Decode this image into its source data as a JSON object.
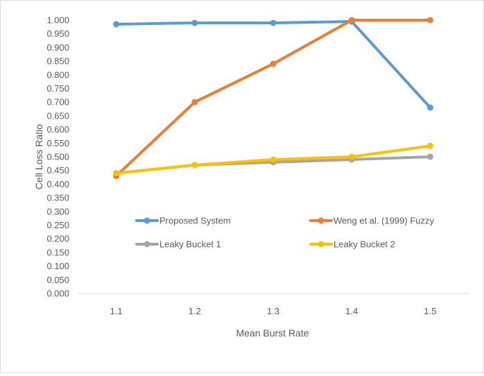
{
  "chart_data": {
    "type": "line",
    "title": "",
    "xlabel": "Mean Burst Rate",
    "ylabel": "Cell Loss Ratio",
    "categories": [
      "1.1",
      "1.2",
      "1.3",
      "1.4",
      "1.5"
    ],
    "ylim": [
      0,
      1.0
    ],
    "yticks": [
      "0.000",
      "0.050",
      "0.100",
      "0.150",
      "0.200",
      "0.250",
      "0.300",
      "0.350",
      "0.400",
      "0.450",
      "0.500",
      "0.550",
      "0.600",
      "0.650",
      "0.700",
      "0.750",
      "0.800",
      "0.850",
      "0.900",
      "0.950",
      "1.000"
    ],
    "grid": false,
    "legend_position": "inside-lower",
    "series": [
      {
        "name": "Proposed System",
        "color": "#5b9bd5",
        "values": [
          0.985,
          0.99,
          0.99,
          0.995,
          0.68
        ]
      },
      {
        "name": "Weng et al. (1999) Fuzzy",
        "color": "#ed7d31",
        "values": [
          0.43,
          0.7,
          0.84,
          1.0,
          1.0
        ]
      },
      {
        "name": "Leaky Bucket 1",
        "color": "#a5a5a5",
        "values": [
          0.44,
          0.47,
          0.48,
          0.49,
          0.5
        ]
      },
      {
        "name": "Leaky Bucket 2",
        "color": "#ffc000",
        "values": [
          0.44,
          0.47,
          0.49,
          0.5,
          0.54
        ]
      }
    ]
  }
}
